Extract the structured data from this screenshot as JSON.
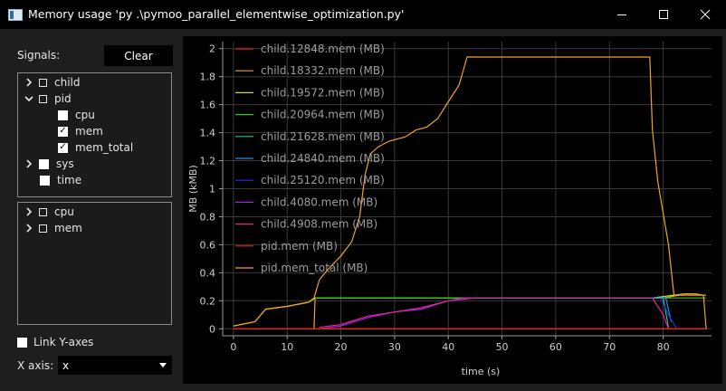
{
  "window": {
    "title": "Memory usage 'py .\\pymoo_parallel_elementwise_optimization.py'",
    "minimize_glyph": "—",
    "maximize_glyph": "☐",
    "close_glyph": "✕"
  },
  "sidebar": {
    "signals_label": "Signals:",
    "clear_label": "Clear",
    "tree_top": [
      {
        "label": "child",
        "expander": "chevron-right",
        "check": "partial"
      },
      {
        "label": "pid",
        "expander": "chevron-down",
        "check": "partial"
      },
      {
        "label": "cpu",
        "check": "unchecked"
      },
      {
        "label": "mem",
        "check": "checked"
      },
      {
        "label": "mem_total",
        "check": "checked"
      },
      {
        "label": "sys",
        "expander": "chevron-right",
        "check": "unchecked"
      },
      {
        "label": "time",
        "check": "unchecked"
      }
    ],
    "tree_bottom": [
      {
        "label": "cpu",
        "expander": "chevron-right",
        "check": "partial"
      },
      {
        "label": "mem",
        "expander": "chevron-right",
        "check": "partial"
      }
    ],
    "link_y_axes_label": "Link Y-axes",
    "link_y_axes_checked": false,
    "x_axis_label": "X axis:",
    "x_axis_value": "x"
  },
  "chart_data": {
    "type": "line",
    "title": "",
    "xlabel": "time (s)",
    "ylabel": "MB (kMB)",
    "xlim": [
      -2,
      89
    ],
    "ylim": [
      -0.05,
      2.05
    ],
    "xticks": [
      0,
      10,
      20,
      30,
      40,
      50,
      60,
      70,
      80
    ],
    "yticks": [
      0,
      0.2,
      0.4,
      0.6,
      0.8,
      1,
      1.2,
      1.4,
      1.6,
      1.8,
      2
    ],
    "ytick_labels": [
      "0",
      "0.2",
      "0.4",
      "0.6",
      "0.8",
      "1",
      "1.2",
      "1.4",
      "1.6",
      "1.8",
      "2"
    ],
    "grid": true,
    "legend_position": "top-left",
    "series": [
      {
        "name": "child.12848.mem (MB)",
        "color": "#e0242b",
        "x": [
          0,
          88
        ],
        "y": [
          0,
          0
        ]
      },
      {
        "name": "child.18332.mem (MB)",
        "color": "#f2a324",
        "x": [
          15,
          15.2,
          80,
          83,
          88
        ],
        "y": [
          0,
          0.22,
          0.22,
          0.24,
          0.24
        ]
      },
      {
        "name": "child.19572.mem (MB)",
        "color": "#bfe024",
        "x": [
          0,
          4,
          6,
          10,
          14,
          15.2,
          78,
          82
        ],
        "y": [
          0.02,
          0.05,
          0.14,
          0.16,
          0.19,
          0.22,
          0.22,
          0.24
        ]
      },
      {
        "name": "child.20964.mem (MB)",
        "color": "#27c42a",
        "x": [
          15.2,
          78,
          84,
          88
        ],
        "y": [
          0.22,
          0.22,
          0.22,
          0.22
        ]
      },
      {
        "name": "child.21628.mem (MB)",
        "color": "#1ec98c",
        "x": [
          45,
          78,
          80,
          81
        ],
        "y": [
          0.22,
          0.22,
          0.22,
          0.01
        ]
      },
      {
        "name": "child.24840.mem (MB)",
        "color": "#1f8fe0",
        "x": [
          45,
          79,
          80.5,
          81.5
        ],
        "y": [
          0.22,
          0.22,
          0.22,
          0.05
        ]
      },
      {
        "name": "child.25120.mem (MB)",
        "color": "#2733d9",
        "x": [
          79.5,
          81,
          82.5
        ],
        "y": [
          0.22,
          0.1,
          0
        ]
      },
      {
        "name": "child.4080.mem (MB)",
        "color": "#a224e0",
        "x": [
          15,
          16,
          20,
          25,
          30,
          35,
          40,
          43,
          45
        ],
        "y": [
          0,
          0,
          0.02,
          0.08,
          0.12,
          0.14,
          0.2,
          0.22,
          0.22
        ]
      },
      {
        "name": "child.4908.mem (MB)",
        "color": "#e02496",
        "x": [
          16,
          20,
          25,
          30,
          35,
          40,
          45,
          78,
          80,
          81
        ],
        "y": [
          0.01,
          0.03,
          0.09,
          0.12,
          0.15,
          0.2,
          0.22,
          0.22,
          0.1,
          0
        ]
      },
      {
        "name": "pid.mem (MB)",
        "color": "#e02424",
        "x": [
          0,
          88
        ],
        "y": [
          0.001,
          0.001
        ]
      },
      {
        "name": "pid.mem_total (MB)",
        "color": "#f2a324",
        "x": [
          0,
          4,
          6,
          10,
          14,
          15,
          16,
          17.5,
          20,
          22,
          23.5,
          24.5,
          25.5,
          27,
          29,
          32,
          34,
          36,
          38,
          40,
          42,
          43.5,
          50,
          60,
          70,
          77.5,
          78,
          79,
          81,
          82,
          84,
          86,
          87.5,
          88
        ],
        "y": [
          0.02,
          0.05,
          0.14,
          0.16,
          0.19,
          0.22,
          0.35,
          0.42,
          0.52,
          0.62,
          0.8,
          1.1,
          1.25,
          1.3,
          1.34,
          1.37,
          1.42,
          1.44,
          1.5,
          1.62,
          1.74,
          1.94,
          1.94,
          1.94,
          1.94,
          1.94,
          1.42,
          1.05,
          0.6,
          0.24,
          0.25,
          0.25,
          0.24,
          0
        ]
      }
    ]
  }
}
